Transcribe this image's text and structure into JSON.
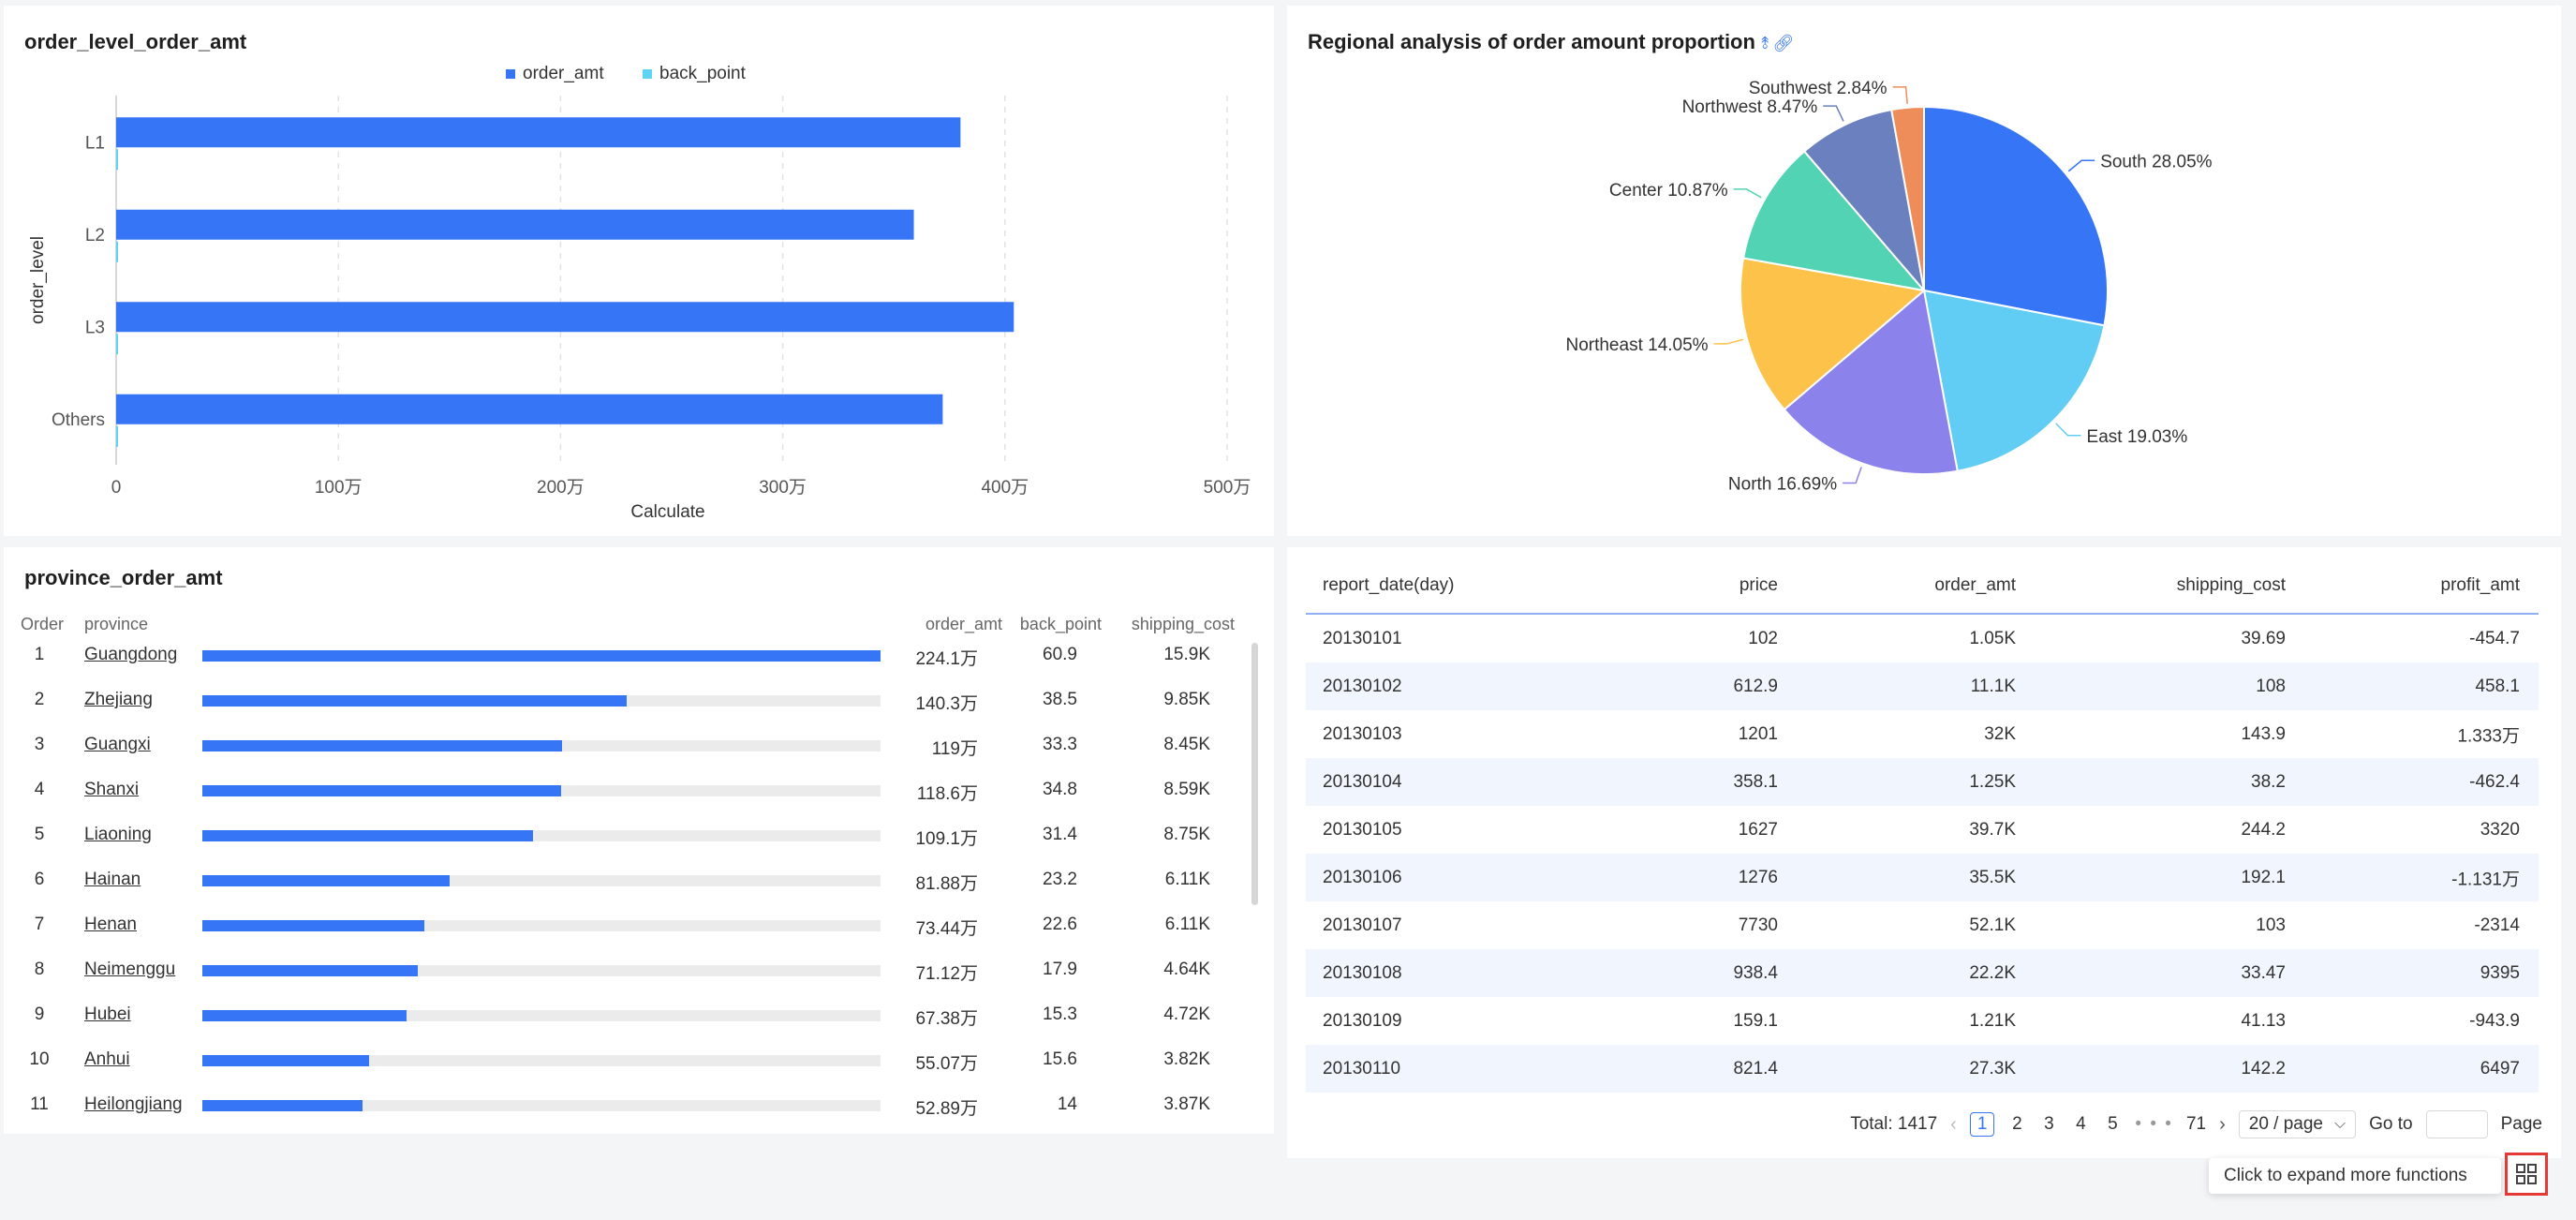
{
  "bar_panel": {
    "title": "order_level_order_amt",
    "legend": [
      {
        "label": "order_amt",
        "color": "#3575f6"
      },
      {
        "label": "back_point",
        "color": "#5fd3f3"
      }
    ]
  },
  "pie_panel": {
    "title": "Regional analysis of order amount proportion",
    "icons": [
      "drill-icon",
      "link-icon"
    ]
  },
  "chart_data": [
    {
      "type": "bar",
      "orientation": "horizontal",
      "title": "order_level_order_amt",
      "categories": [
        "L1",
        "L2",
        "L3",
        "Others"
      ],
      "series": [
        {
          "name": "order_amt",
          "values": [
            3800000,
            3590000,
            4040000,
            3720000
          ],
          "color": "#3575f6"
        },
        {
          "name": "back_point",
          "values": [
            0,
            0,
            0,
            0
          ],
          "color": "#5fd3f3"
        }
      ],
      "xlabel": "Calculate",
      "ylabel": "order_level",
      "xlim": [
        0,
        5000000
      ],
      "xticks": [
        0,
        1000000,
        2000000,
        3000000,
        4000000,
        5000000
      ],
      "xtick_labels": [
        "0",
        "100万",
        "200万",
        "300万",
        "400万",
        "500万"
      ],
      "grid": "vertical dashed",
      "legend_position": "top"
    },
    {
      "type": "pie",
      "title": "Regional analysis of order amount proportion",
      "slices": [
        {
          "label": "South 28.05%",
          "value": 28.05,
          "color": "#3575f6"
        },
        {
          "label": "East 19.03%",
          "value": 19.03,
          "color": "#62cdf4"
        },
        {
          "label": "North 16.69%",
          "value": 16.69,
          "color": "#8c82ec"
        },
        {
          "label": "Northeast 14.05%",
          "value": 14.05,
          "color": "#fcc24a"
        },
        {
          "label": "Center 10.87%",
          "value": 10.87,
          "color": "#52d3b4"
        },
        {
          "label": "Northwest 8.47%",
          "value": 8.47,
          "color": "#6a80bf"
        },
        {
          "label": "Southwest 2.84%",
          "value": 2.84,
          "color": "#ef8d5a"
        }
      ]
    }
  ],
  "province_panel": {
    "title": "province_order_amt",
    "headers": {
      "order": "Order",
      "province": "province",
      "order_amt": "order_amt",
      "back_point": "back_point",
      "shipping_cost": "shipping_cost"
    },
    "rows": [
      {
        "order": "1",
        "province": "Guangdong",
        "fraction": 1.0,
        "order_amt": "224.1万",
        "back_point": "60.9",
        "shipping_cost": "15.9K"
      },
      {
        "order": "2",
        "province": "Zhejiang",
        "fraction": 0.626,
        "order_amt": "140.3万",
        "back_point": "38.5",
        "shipping_cost": "9.85K"
      },
      {
        "order": "3",
        "province": "Guangxi",
        "fraction": 0.531,
        "order_amt": "119万",
        "back_point": "33.3",
        "shipping_cost": "8.45K"
      },
      {
        "order": "4",
        "province": "Shanxi",
        "fraction": 0.529,
        "order_amt": "118.6万",
        "back_point": "34.8",
        "shipping_cost": "8.59K"
      },
      {
        "order": "5",
        "province": "Liaoning",
        "fraction": 0.487,
        "order_amt": "109.1万",
        "back_point": "31.4",
        "shipping_cost": "8.75K"
      },
      {
        "order": "6",
        "province": "Hainan",
        "fraction": 0.365,
        "order_amt": "81.88万",
        "back_point": "23.2",
        "shipping_cost": "6.11K"
      },
      {
        "order": "7",
        "province": "Henan",
        "fraction": 0.328,
        "order_amt": "73.44万",
        "back_point": "22.6",
        "shipping_cost": "6.11K"
      },
      {
        "order": "8",
        "province": "Neimenggu",
        "fraction": 0.317,
        "order_amt": "71.12万",
        "back_point": "17.9",
        "shipping_cost": "4.64K"
      },
      {
        "order": "9",
        "province": "Hubei",
        "fraction": 0.301,
        "order_amt": "67.38万",
        "back_point": "15.3",
        "shipping_cost": "4.72K"
      },
      {
        "order": "10",
        "province": "Anhui",
        "fraction": 0.246,
        "order_amt": "55.07万",
        "back_point": "15.6",
        "shipping_cost": "3.82K"
      },
      {
        "order": "11",
        "province": "Heilongjiang",
        "fraction": 0.236,
        "order_amt": "52.89万",
        "back_point": "14",
        "shipping_cost": "3.87K"
      }
    ]
  },
  "table_panel": {
    "headers": [
      "report_date(day)",
      "price",
      "order_amt",
      "shipping_cost",
      "profit_amt"
    ],
    "rows": [
      [
        "20130101",
        "102",
        "1.05K",
        "39.69",
        "-454.7"
      ],
      [
        "20130102",
        "612.9",
        "11.1K",
        "108",
        "458.1"
      ],
      [
        "20130103",
        "1201",
        "32K",
        "143.9",
        "1.333万"
      ],
      [
        "20130104",
        "358.1",
        "1.25K",
        "38.2",
        "-462.4"
      ],
      [
        "20130105",
        "1627",
        "39.7K",
        "244.2",
        "3320"
      ],
      [
        "20130106",
        "1276",
        "35.5K",
        "192.1",
        "-1.131万"
      ],
      [
        "20130107",
        "7730",
        "52.1K",
        "103",
        "-2314"
      ],
      [
        "20130108",
        "938.4",
        "22.2K",
        "33.47",
        "9395"
      ],
      [
        "20130109",
        "159.1",
        "1.21K",
        "41.13",
        "-943.9"
      ],
      [
        "20130110",
        "821.4",
        "27.3K",
        "142.2",
        "6497"
      ]
    ],
    "pagination": {
      "total": "Total: 1417",
      "pages": [
        "1",
        "2",
        "3",
        "4",
        "5"
      ],
      "active_page": "1",
      "ellipsis": "• • •",
      "last_page": "71",
      "page_size": "20 / page",
      "goto_label": "Go to",
      "page_label": "Page"
    }
  },
  "floating": {
    "tooltip": "Click to expand more functions"
  }
}
